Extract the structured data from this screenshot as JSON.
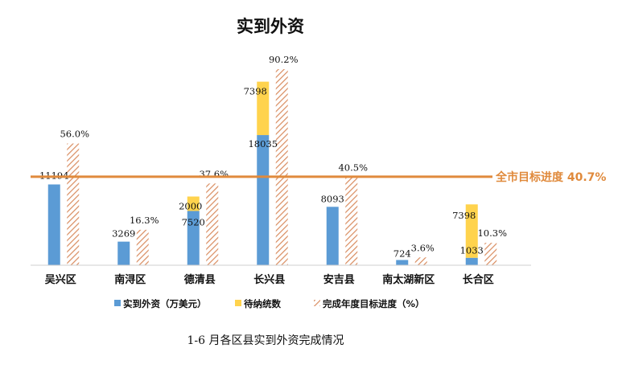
{
  "chart_data": {
    "type": "bar",
    "title": "实到外资",
    "caption": "1-6 月各区县实到外资完成情况",
    "categories": [
      "吴兴区",
      "南浔区",
      "德清县",
      "长兴县",
      "安吉县",
      "南太湖新区",
      "长合区"
    ],
    "series": [
      {
        "name": "实到外资（万美元）",
        "values": [
          11194,
          3269,
          7520,
          18035,
          8093,
          724,
          1033
        ],
        "color": "#5b9bd5",
        "labels": [
          "11194",
          "3269",
          "7520",
          "18035",
          "8093",
          "724",
          "1033"
        ]
      },
      {
        "name": "待纳统数",
        "values": [
          null,
          null,
          2000,
          7398,
          null,
          null,
          7398
        ],
        "color": "#ffd34d",
        "labels": [
          "",
          "",
          "2000",
          "7398",
          "",
          "",
          "7398"
        ]
      },
      {
        "name": "完成年度目标进度（%）",
        "values": [
          56.0,
          16.3,
          37.6,
          90.2,
          40.5,
          3.6,
          10.3
        ],
        "color": "#d98c5f",
        "labels": [
          "56.0%",
          "16.3%",
          "37.6%",
          "90.2%",
          "40.5%",
          "3.6%",
          "10.3%"
        ]
      }
    ],
    "reference_line": {
      "value": 40.7,
      "label": "全市目标进度 40.7%",
      "color": "#e08a3c"
    },
    "legend_position": "bottom",
    "grid": false
  }
}
